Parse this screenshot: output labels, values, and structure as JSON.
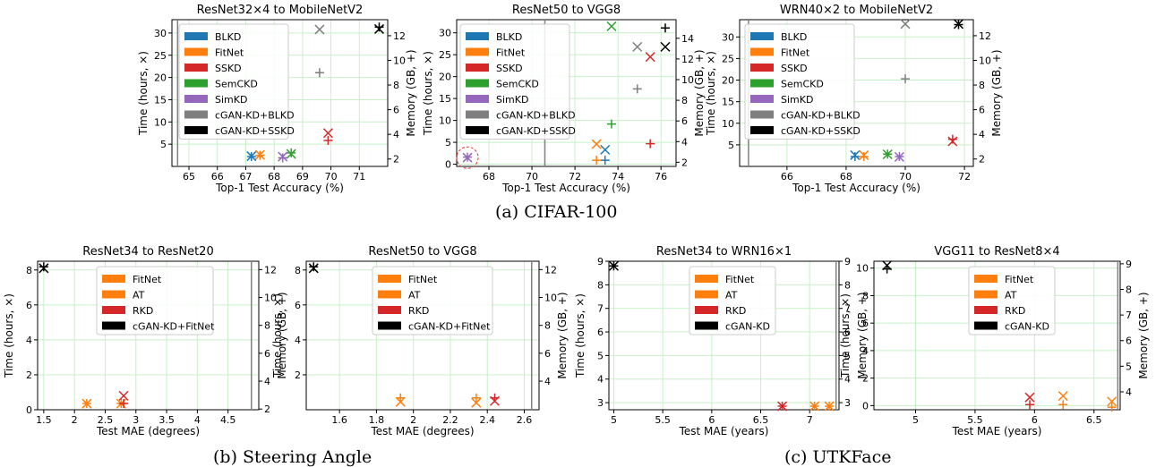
{
  "colors": {
    "BLKD": "#1f77b4",
    "FitNet": "#ff7f0e",
    "SSKD": "#d62728",
    "SemCKD": "#2ca02c",
    "SimKD": "#9467bd",
    "cGAN-KD+BLKD": "#7f7f7f",
    "cGAN-KD+SSKD": "#000000",
    "AT": "#ff7f0e",
    "RKD": "#d62728",
    "cGAN-KD+FitNet": "#000000",
    "cGAN-KD": "#000000",
    "grid": "#c8f0c8",
    "vline": "#808080",
    "circle": "#e03030"
  },
  "captions": {
    "a": "(a) CIFAR-100",
    "b": "(b) Steering Angle",
    "c": "(c) UTKFace"
  },
  "chart_data": [
    {
      "type": "scatter",
      "title": "ResNet32×4 to MobileNetV2",
      "xlabel": "Top-1 Test Accuracy (%)",
      "ylabel": "Time (hours, ×)",
      "y2label": "Memory (GB, +)",
      "xlim": [
        64.4,
        72.0
      ],
      "xticks": [
        65,
        66,
        67,
        68,
        69,
        70,
        71
      ],
      "ylim": [
        0,
        33
      ],
      "yticks": [
        5,
        10,
        15,
        20,
        25,
        30
      ],
      "y2lim": [
        1.4,
        13.3
      ],
      "y2ticks": [
        2,
        4,
        6,
        8,
        10,
        12
      ],
      "vline": 64.6,
      "legend": [
        "BLKD",
        "FitNet",
        "SSKD",
        "SemCKD",
        "SimKD",
        "cGAN-KD+BLKD",
        "cGAN-KD+SSKD"
      ],
      "series": [
        {
          "name": "BLKD",
          "x": 67.2,
          "time": 2.3,
          "memory": 2.2
        },
        {
          "name": "FitNet",
          "x": 67.5,
          "time": 2.6,
          "memory": 2.3
        },
        {
          "name": "SSKD",
          "x": 69.9,
          "time": 7.5,
          "memory": 3.5
        },
        {
          "name": "SemCKD",
          "x": 68.6,
          "time": 2.8,
          "memory": 2.5
        },
        {
          "name": "SimKD",
          "x": 68.3,
          "time": 2.2,
          "memory": 2.1
        },
        {
          "name": "cGAN-KD+BLKD",
          "x": 69.6,
          "time": 30.8,
          "memory": 9.0
        },
        {
          "name": "cGAN-KD+SSKD",
          "x": 71.7,
          "time": 30.9,
          "memory": 12.7
        }
      ]
    },
    {
      "type": "scatter",
      "title": "ResNet50 to VGG8",
      "xlabel": "Top-1 Test Accuracy (%)",
      "ylabel": "Time (hours, ×)",
      "y2label": "Memory (GB, +)",
      "xlim": [
        66.5,
        76.7
      ],
      "xticks": [
        68,
        70,
        72,
        74,
        76
      ],
      "ylim": [
        -0.5,
        33
      ],
      "yticks": [
        0,
        5,
        10,
        15,
        20,
        25,
        30
      ],
      "y2lim": [
        1.6,
        15.8
      ],
      "y2ticks": [
        2,
        4,
        6,
        8,
        10,
        12,
        14
      ],
      "vline": 70.6,
      "legend": [
        "BLKD",
        "FitNet",
        "SSKD",
        "SemCKD",
        "SimKD",
        "cGAN-KD+BLKD",
        "cGAN-KD+SSKD"
      ],
      "series": [
        {
          "name": "BLKD",
          "x": 73.4,
          "time": 3.3,
          "memory": 2.2
        },
        {
          "name": "FitNet",
          "x": 73.0,
          "time": 4.6,
          "memory": 2.2
        },
        {
          "name": "SSKD",
          "x": 75.5,
          "time": 24.5,
          "memory": 3.8
        },
        {
          "name": "SemCKD",
          "x": 73.7,
          "time": 31.5,
          "memory": 5.7
        },
        {
          "name": "SimKD",
          "x": 67.0,
          "time": 1.5,
          "memory": 2.5
        },
        {
          "name": "cGAN-KD+BLKD",
          "x": 74.9,
          "time": 26.8,
          "memory": 9.1
        },
        {
          "name": "cGAN-KD+SSKD",
          "x": 76.2,
          "time": 26.8,
          "memory": 15.0
        }
      ]
    },
    {
      "type": "scatter",
      "title": "WRN40×2 to MobileNetV2",
      "xlabel": "Top-1 Test Accuracy (%)",
      "ylabel": "Time (hours, ×)",
      "y2label": "Memory (GB, +)",
      "xlim": [
        64.4,
        72.3
      ],
      "xticks": [
        66,
        68,
        70,
        72
      ],
      "ylim": [
        0,
        34
      ],
      "yticks": [
        5,
        10,
        15,
        20,
        25,
        30
      ],
      "y2lim": [
        1.4,
        13.3
      ],
      "y2ticks": [
        2,
        4,
        6,
        8,
        10,
        12
      ],
      "vline": 64.7,
      "legend": [
        "BLKD",
        "FitNet",
        "SSKD",
        "SemCKD",
        "SimKD",
        "cGAN-KD+BLKD",
        "cGAN-KD+SSKD"
      ],
      "series": [
        {
          "name": "BLKD",
          "x": 68.3,
          "time": 2.6,
          "memory": 2.2
        },
        {
          "name": "FitNet",
          "x": 68.6,
          "time": 2.6,
          "memory": 2.2
        },
        {
          "name": "SSKD",
          "x": 71.6,
          "time": 5.8,
          "memory": 3.6
        },
        {
          "name": "SemCKD",
          "x": 69.4,
          "time": 2.8,
          "memory": 2.4
        },
        {
          "name": "SimKD",
          "x": 69.8,
          "time": 2.2,
          "memory": 2.2
        },
        {
          "name": "cGAN-KD+BLKD",
          "x": 70.0,
          "time": 33.0,
          "memory": 8.5
        },
        {
          "name": "cGAN-KD+SSKD",
          "x": 71.8,
          "time": 33.0,
          "memory": 12.9
        }
      ]
    },
    {
      "type": "scatter",
      "title": "ResNet34 to ResNet20",
      "xlabel": "Test MAE (degrees)",
      "ylabel": "Time (hours, ×)",
      "y2label": "Memory (GB, +)",
      "xlim": [
        1.4,
        5.0
      ],
      "xticks": [
        1.5,
        2.0,
        2.5,
        3.0,
        3.5,
        4.0,
        4.5
      ],
      "ylim": [
        0,
        8.5
      ],
      "yticks": [
        0,
        2,
        4,
        6,
        8
      ],
      "y2lim": [
        1.95,
        12.6
      ],
      "y2ticks": [
        2,
        4,
        6,
        8,
        10,
        12
      ],
      "vline": 4.88,
      "legend": [
        "FitNet",
        "AT",
        "RKD",
        "cGAN-KD+FitNet"
      ],
      "series": [
        {
          "name": "FitNet",
          "x": 2.2,
          "time": 0.35,
          "memory": 2.4
        },
        {
          "name": "AT",
          "x": 2.76,
          "time": 0.35,
          "memory": 2.4
        },
        {
          "name": "RKD",
          "x": 2.8,
          "time": 0.8,
          "memory": 2.4
        },
        {
          "name": "cGAN-KD+FitNet",
          "x": 1.5,
          "time": 8.1,
          "memory": 12.2
        }
      ]
    },
    {
      "type": "scatter",
      "title": "ResNet50 to VGG8",
      "xlabel": "Test MAE (degrees)",
      "ylabel": "Time (hours, ×)",
      "y2label": "Memory (GB, +)",
      "xlim": [
        1.42,
        2.68
      ],
      "xticks": [
        1.6,
        1.8,
        2.0,
        2.2,
        2.4,
        2.6
      ],
      "ylim": [
        0,
        8.5
      ],
      "yticks": [
        2,
        4,
        6,
        8
      ],
      "y2lim": [
        1.95,
        12.6
      ],
      "y2ticks": [
        4,
        6,
        8,
        10,
        12
      ],
      "vline": 2.64,
      "legend": [
        "FitNet",
        "AT",
        "RKD",
        "cGAN-KD+FitNet"
      ],
      "series": [
        {
          "name": "FitNet",
          "x": 1.93,
          "time": 0.45,
          "memory": 2.8
        },
        {
          "name": "AT",
          "x": 2.34,
          "time": 0.4,
          "memory": 2.8
        },
        {
          "name": "RKD",
          "x": 2.44,
          "time": 0.5,
          "memory": 2.8
        },
        {
          "name": "cGAN-KD+FitNet",
          "x": 1.46,
          "time": 8.1,
          "memory": 12.2
        }
      ]
    },
    {
      "type": "scatter",
      "title": "ResNet34 to WRN16×1",
      "xlabel": "Test MAE (years)",
      "ylabel": "Time (hours, ×)",
      "y2label": "Memory (GB, +)",
      "xlim": [
        4.95,
        7.3
      ],
      "xticks": [
        5.0,
        5.5,
        6.0,
        6.5,
        7.0
      ],
      "ylim": [
        2.7,
        9.0
      ],
      "yticks": [
        3,
        4,
        5,
        6,
        7,
        8,
        9
      ],
      "y2lim": [
        2.7,
        9.0
      ],
      "y2ticks": [
        3,
        4,
        5,
        6,
        7,
        8,
        9
      ],
      "vline": 7.27,
      "legend": [
        "FitNet",
        "AT",
        "RKD",
        "cGAN-KD"
      ],
      "series": [
        {
          "name": "FitNet",
          "x": 7.05,
          "time": 2.85,
          "memory": 2.85
        },
        {
          "name": "AT",
          "x": 7.2,
          "time": 2.85,
          "memory": 2.85
        },
        {
          "name": "RKD",
          "x": 6.72,
          "time": 2.85,
          "memory": 2.85
        },
        {
          "name": "cGAN-KD",
          "x": 5.0,
          "time": 8.8,
          "memory": 8.8
        }
      ]
    },
    {
      "type": "scatter",
      "title": "VGG11 to ResNet8×4",
      "xlabel": "Test MAE (years)",
      "ylabel": "Time (hours, ×)",
      "y2label": "Memory (GB, +)",
      "xlim": [
        4.65,
        6.72
      ],
      "xticks": [
        5.0,
        5.5,
        6.0,
        6.5
      ],
      "ylim": [
        -0.3,
        10.5
      ],
      "yticks": [
        0,
        2,
        4,
        6,
        8,
        10
      ],
      "y2lim": [
        3.3,
        9.1
      ],
      "y2ticks": [
        4,
        5,
        6,
        7,
        8,
        9
      ],
      "vline": 6.7,
      "legend": [
        "FitNet",
        "AT",
        "RKD",
        "cGAN-KD"
      ],
      "series": [
        {
          "name": "FitNet",
          "x": 6.24,
          "time": 0.7,
          "memory": 3.5
        },
        {
          "name": "AT",
          "x": 6.65,
          "time": 0.3,
          "memory": 3.4
        },
        {
          "name": "RKD",
          "x": 5.96,
          "time": 0.6,
          "memory": 3.5
        },
        {
          "name": "cGAN-KD",
          "x": 4.76,
          "time": 10.2,
          "memory": 8.8
        }
      ]
    }
  ]
}
